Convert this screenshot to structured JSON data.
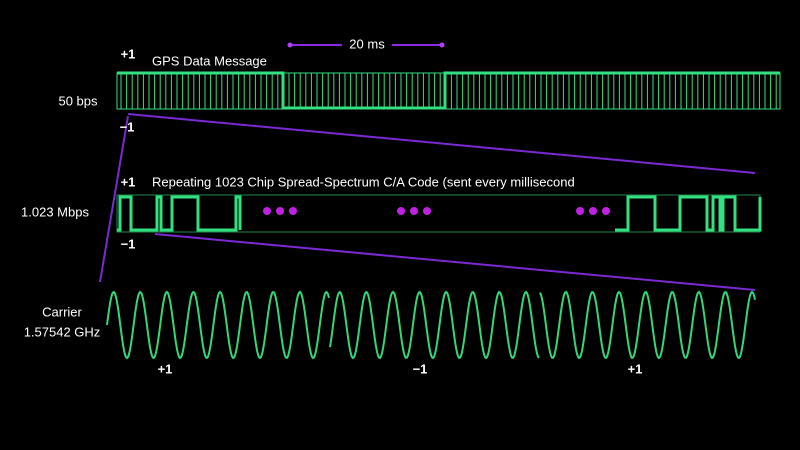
{
  "scale": {
    "label": "20 ms"
  },
  "data_row": {
    "high": "+1",
    "title": "GPS Data Message",
    "rate": "50 bps",
    "low": "−1"
  },
  "code_row": {
    "high": "+1",
    "title": "Repeating 1023 Chip Spread-Spectrum C/A Code (sent every millisecond",
    "rate": "1.023 Mbps",
    "low": "−1"
  },
  "carrier_row": {
    "label": [
      "Carrier",
      "1.57542 GHz"
    ],
    "phases": [
      "+1",
      "−1",
      "+1"
    ]
  }
}
